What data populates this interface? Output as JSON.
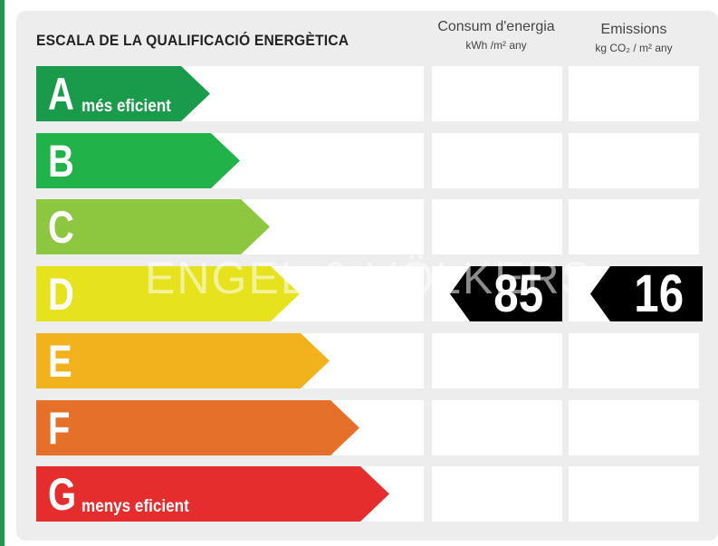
{
  "title": "ESCALA DE LA QUALIFICACIÓ ENERGÈTICA",
  "columns": {
    "consum": {
      "line1": "Consum d'energia",
      "line2": "kWh /m² any"
    },
    "emissions": {
      "line1": "Emissions",
      "line2": "kg CO₂ / m² any"
    }
  },
  "classes": [
    {
      "letter": "A",
      "sub": "més eficient",
      "color": "#1a9b4b"
    },
    {
      "letter": "B",
      "sub": "",
      "color": "#21b34a"
    },
    {
      "letter": "C",
      "sub": "",
      "color": "#8dc63f"
    },
    {
      "letter": "D",
      "sub": "",
      "color": "#e6e21d"
    },
    {
      "letter": "E",
      "sub": "",
      "color": "#f2b21c"
    },
    {
      "letter": "F",
      "sub": "",
      "color": "#e5702a"
    },
    {
      "letter": "G",
      "sub": "menys eficient",
      "color": "#e52d2d"
    }
  ],
  "rating": {
    "class": "D",
    "consum_value": "85",
    "emissions_value": "16"
  },
  "watermark": "ENGEL & VÖLKERS"
}
